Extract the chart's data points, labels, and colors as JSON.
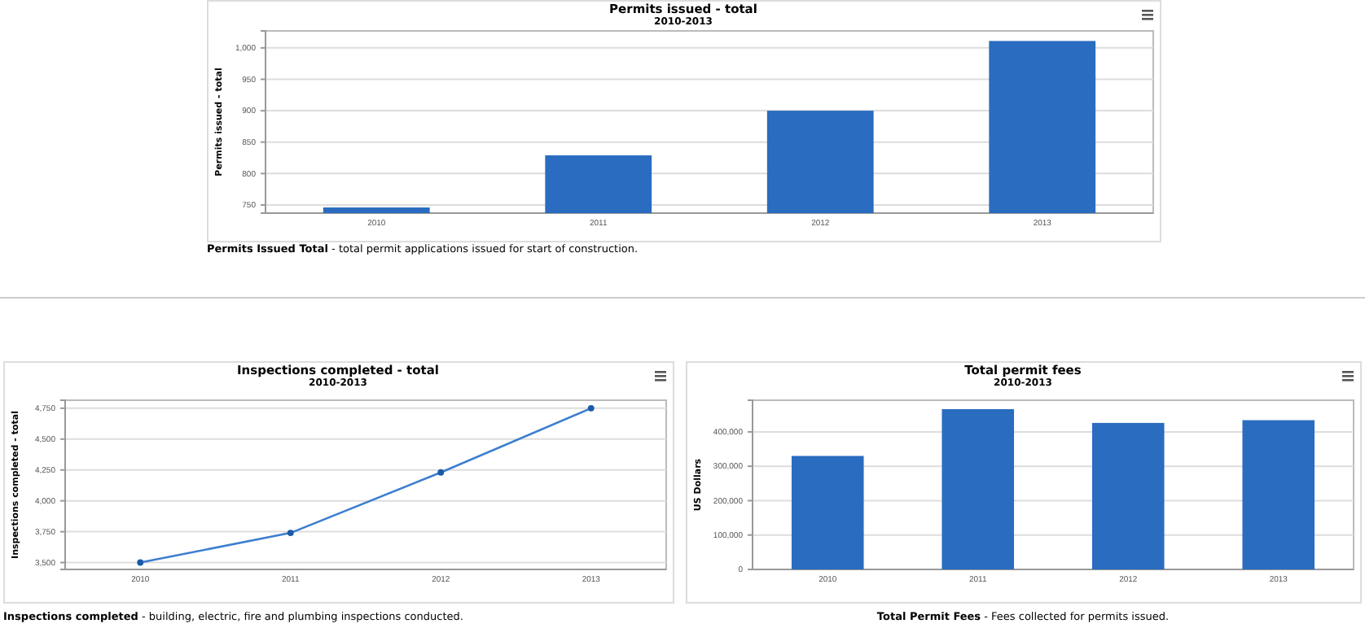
{
  "chart_data": [
    {
      "type": "bar",
      "title": "Permits issued - total",
      "subtitle": "2010-2013",
      "ylabel": "Permits issued - total",
      "categories": [
        "2010",
        "2011",
        "2012",
        "2013"
      ],
      "series": [
        {
          "color": "#2a6cc0",
          "values": [
            746,
            829,
            900,
            1011
          ]
        }
      ],
      "ylim": [
        737,
        1027
      ],
      "yticks": [
        {
          "value": 750,
          "label": "750"
        },
        {
          "value": 800,
          "label": "800"
        },
        {
          "value": 850,
          "label": "850"
        },
        {
          "value": 900,
          "label": "900"
        },
        {
          "value": 950,
          "label": "950"
        },
        {
          "value": 1000,
          "label": "1,000"
        }
      ],
      "grid": "y",
      "annotations": [
        "Permits Issued Total - total permit applications issued for start of construction."
      ]
    },
    {
      "type": "line",
      "title": "Inspections completed - total",
      "subtitle": "2010-2013",
      "ylabel": "Inspections completed - total",
      "categories": [
        "2010",
        "2011",
        "2012",
        "2013"
      ],
      "series": [
        {
          "color": "#3d7ecf",
          "values": [
            3500,
            3740,
            4230,
            4750
          ]
        }
      ],
      "marker": "circle",
      "ylim": [
        3444,
        4815
      ],
      "yticks": [
        {
          "value": 3500,
          "label": "3,500"
        },
        {
          "value": 3750,
          "label": "3,750"
        },
        {
          "value": 4000,
          "label": "4,000"
        },
        {
          "value": 4250,
          "label": "4,250"
        },
        {
          "value": 4500,
          "label": "4,500"
        },
        {
          "value": 4750,
          "label": "4,750"
        }
      ],
      "grid": "y",
      "annotations": [
        "Inspections completed - building, electric, fire and plumbing inspections conducted."
      ]
    },
    {
      "type": "bar",
      "title": "Total permit fees",
      "subtitle": "2010-2013",
      "ylabel": "US Dollars",
      "categories": [
        "2010",
        "2011",
        "2012",
        "2013"
      ],
      "series": [
        {
          "color": "#2a6cc0",
          "values": [
            330000,
            466000,
            426000,
            434000
          ]
        }
      ],
      "ylim": [
        0,
        492000
      ],
      "yticks": [
        0,
        {
          "value": 100000,
          "label": "100,000"
        },
        {
          "value": 200000,
          "label": "200,000"
        },
        {
          "value": 300000,
          "label": "300,000"
        },
        {
          "value": 400000,
          "label": "400,000"
        }
      ],
      "grid": "y",
      "annotations": [
        "Total Permit Fees - Fees collected for permits issued."
      ]
    }
  ]
}
